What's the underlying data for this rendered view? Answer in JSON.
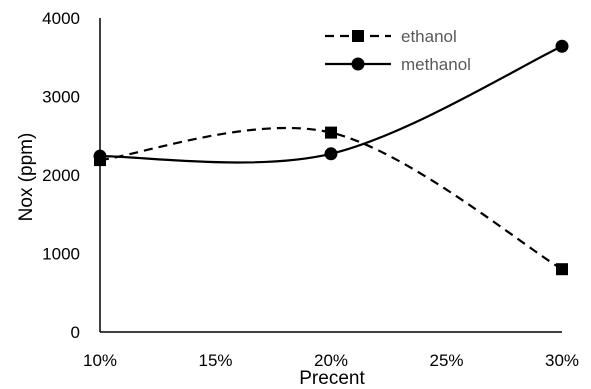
{
  "chart_data": {
    "type": "line",
    "title": "",
    "xlabel": "Precent",
    "ylabel": "Nox (ppm)",
    "categories": [
      "10%",
      "15%",
      "20%",
      "25%",
      "30%"
    ],
    "x": [
      10,
      20,
      30
    ],
    "xlim": [
      10,
      30
    ],
    "ylim": [
      0,
      4000
    ],
    "yticks": [
      0,
      1000,
      2000,
      3000,
      4000
    ],
    "grid": false,
    "legend_position": "top-right",
    "series": [
      {
        "name": "ethanol",
        "values": [
          2190,
          2540,
          800
        ],
        "line": "dashed",
        "marker": "square",
        "color": "#000000"
      },
      {
        "name": "methanol",
        "values": [
          2240,
          2270,
          3640
        ],
        "line": "solid",
        "marker": "circle",
        "color": "#000000"
      }
    ]
  }
}
